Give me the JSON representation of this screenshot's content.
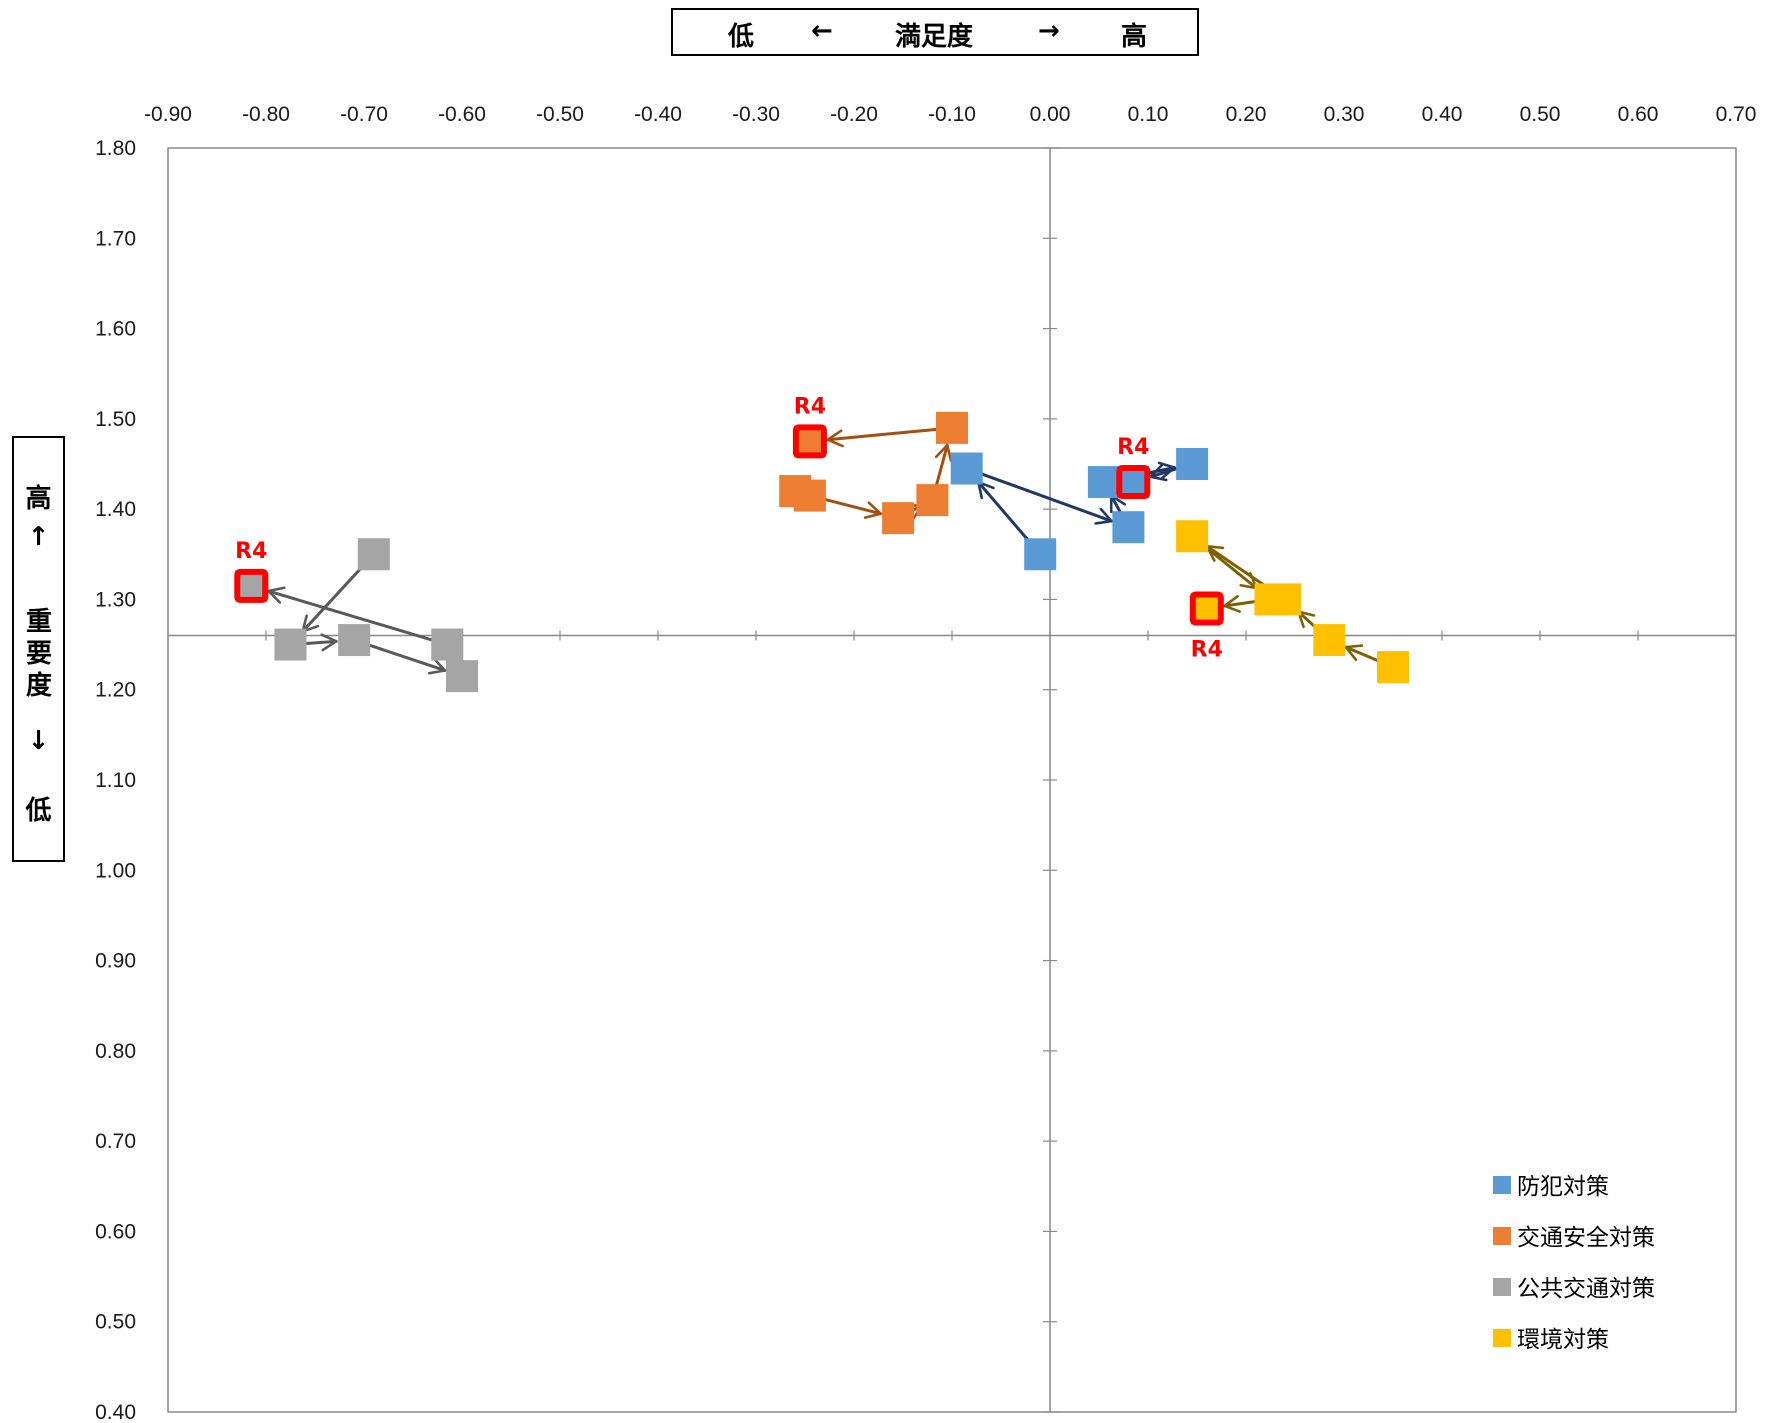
{
  "chart_data": {
    "type": "scatter",
    "x_header": {
      "low": "低",
      "left_arrow": "←",
      "label": "満足度",
      "right_arrow": "→",
      "high": "高"
    },
    "y_header": {
      "high": "高",
      "up_arrow": "↑",
      "label": "重要度",
      "down_arrow": "↓",
      "low": "低"
    },
    "xlim": [
      -0.9,
      0.7
    ],
    "ylim": [
      0.4,
      1.8
    ],
    "x_ticks": [
      "-0.90",
      "-0.80",
      "-0.70",
      "-0.60",
      "-0.50",
      "-0.40",
      "-0.30",
      "-0.20",
      "-0.10",
      "0.00",
      "0.10",
      "0.20",
      "0.30",
      "0.40",
      "0.50",
      "0.60",
      "0.70"
    ],
    "y_ticks": [
      "1.80",
      "1.70",
      "1.60",
      "1.50",
      "1.40",
      "1.30",
      "1.20",
      "1.10",
      "1.00",
      "0.90",
      "0.80",
      "0.70",
      "0.60",
      "0.50",
      "0.40"
    ],
    "quadrant_lines": {
      "x": 0.0,
      "y": 1.26
    },
    "grid": false,
    "legend_position": "bottom-right",
    "current_marker": "R4",
    "series": [
      {
        "name": "防犯対策",
        "color": "#5b9bd5",
        "arrow_color": "#1f3864",
        "points": [
          {
            "x": -0.01,
            "y": 1.35
          },
          {
            "x": -0.085,
            "y": 1.445
          },
          {
            "x": 0.08,
            "y": 1.38
          },
          {
            "x": 0.055,
            "y": 1.43
          },
          {
            "x": 0.145,
            "y": 1.45
          },
          {
            "x": 0.085,
            "y": 1.43
          }
        ]
      },
      {
        "name": "交通安全対策",
        "color": "#ed7d31",
        "arrow_color": "#a34f0f",
        "points": [
          {
            "x": -0.26,
            "y": 1.42
          },
          {
            "x": -0.245,
            "y": 1.415
          },
          {
            "x": -0.155,
            "y": 1.39
          },
          {
            "x": -0.12,
            "y": 1.41
          },
          {
            "x": -0.1,
            "y": 1.49
          },
          {
            "x": -0.245,
            "y": 1.475
          }
        ]
      },
      {
        "name": "公共交通対策",
        "color": "#a5a5a5",
        "arrow_color": "#595959",
        "points": [
          {
            "x": -0.69,
            "y": 1.35
          },
          {
            "x": -0.775,
            "y": 1.25
          },
          {
            "x": -0.71,
            "y": 1.255
          },
          {
            "x": -0.6,
            "y": 1.215
          },
          {
            "x": -0.615,
            "y": 1.25
          },
          {
            "x": -0.815,
            "y": 1.315
          }
        ]
      },
      {
        "name": "環境対策",
        "color": "#ffc000",
        "arrow_color": "#7f6000",
        "points": [
          {
            "x": 0.35,
            "y": 1.225
          },
          {
            "x": 0.285,
            "y": 1.255
          },
          {
            "x": 0.24,
            "y": 1.3
          },
          {
            "x": 0.145,
            "y": 1.37
          },
          {
            "x": 0.225,
            "y": 1.3
          },
          {
            "x": 0.16,
            "y": 1.29
          }
        ]
      }
    ]
  }
}
